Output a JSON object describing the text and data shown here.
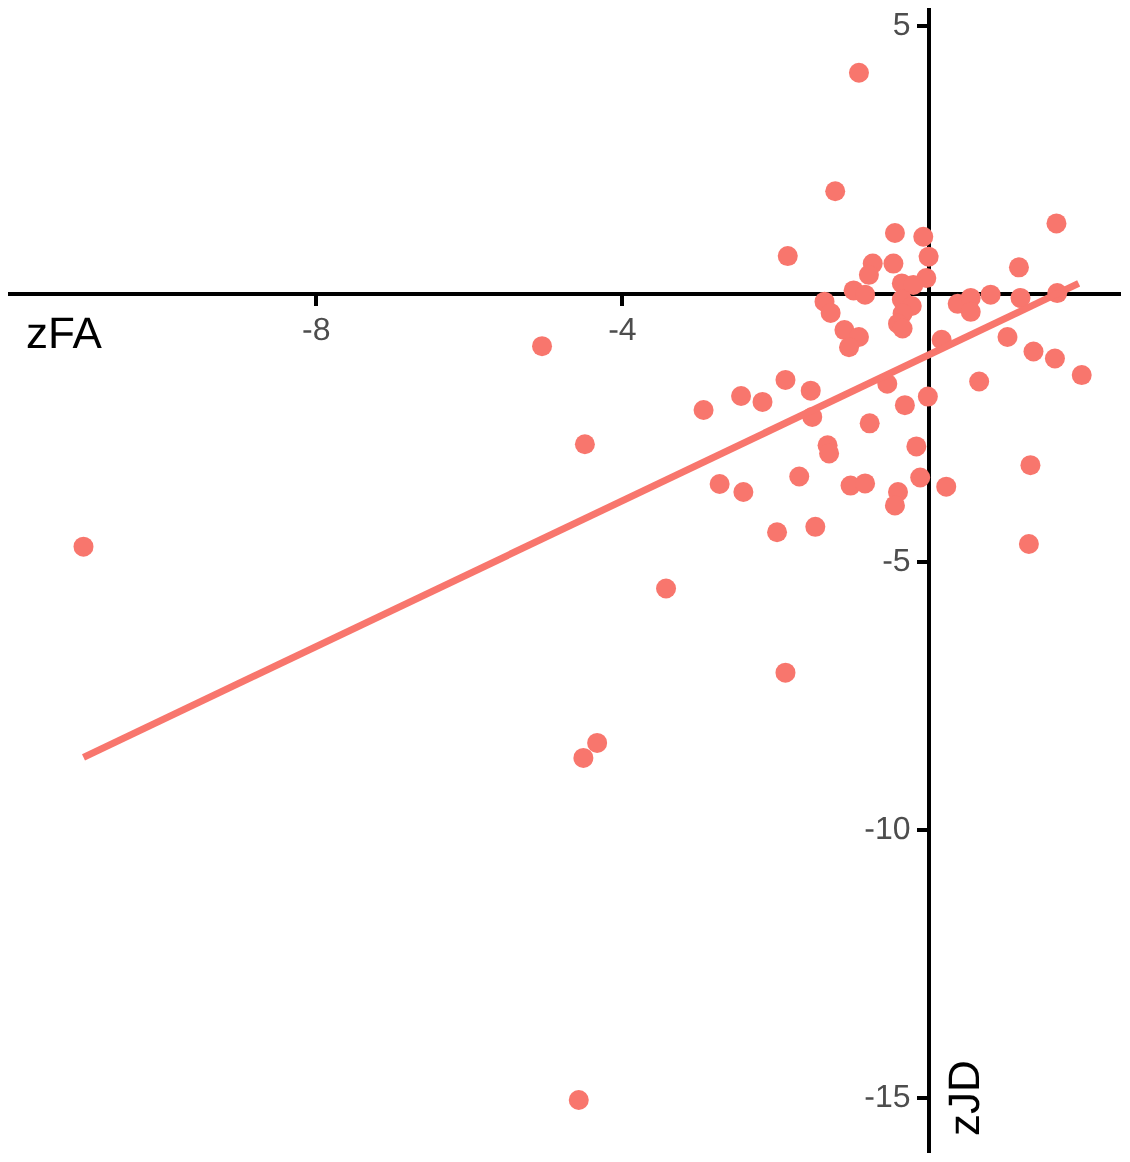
{
  "chart_data": {
    "type": "scatter",
    "xlabel": "zFA",
    "ylabel": "zJD",
    "xlim": [
      -12,
      2.5
    ],
    "ylim": [
      -16,
      5.3
    ],
    "xticks": [
      -8,
      -4
    ],
    "yticks": [
      5,
      -5,
      -10,
      -15
    ],
    "series": [
      {
        "type": "scatter",
        "color": "#f8766d",
        "x": [
          -11.04,
          -5.05,
          -4.49,
          -3.43,
          -1.87,
          -4.33,
          -4.51,
          -4.57,
          -0.91,
          -1.22,
          -1.84,
          -0.44,
          -0.07,
          1.67,
          0.0,
          -0.46,
          -0.73,
          -0.78,
          1.18,
          -0.03,
          -0.35,
          -0.2,
          -0.98,
          -0.83,
          -1.36,
          -1.28,
          -0.35,
          -0.22,
          -0.34,
          -0.4,
          -0.34,
          0.38,
          0.55,
          0.81,
          0.55,
          1.2,
          1.68,
          -1.1,
          -0.91,
          -1.04,
          0.17,
          1.03,
          1.37,
          1.65,
          2.0,
          -2.94,
          -2.45,
          -2.17,
          -1.87,
          -1.54,
          -1.52,
          -0.54,
          -0.31,
          -0.01,
          0.66,
          -0.77,
          -1.32,
          -1.3,
          -0.16,
          -2.73,
          -2.42,
          -1.69,
          -1.02,
          -0.83,
          -0.4,
          -0.44,
          -0.11,
          0.23,
          1.33,
          -1.98,
          -1.48,
          1.31
        ],
        "values": [
          -4.71,
          -0.97,
          -2.8,
          -5.49,
          -7.06,
          -8.37,
          -8.65,
          -15.03,
          4.13,
          1.92,
          0.71,
          1.14,
          1.07,
          1.32,
          0.7,
          0.57,
          0.57,
          0.36,
          0.5,
          0.3,
          0.2,
          0.17,
          0.07,
          -0.01,
          -0.14,
          -0.35,
          -0.1,
          -0.22,
          -0.36,
          -0.55,
          -0.64,
          -0.18,
          -0.07,
          -0.01,
          -0.33,
          -0.07,
          0.02,
          -0.67,
          -0.8,
          -0.99,
          -0.85,
          -0.8,
          -1.07,
          -1.2,
          -1.51,
          -2.16,
          -1.9,
          -2.01,
          -1.6,
          -1.8,
          -2.29,
          -1.67,
          -2.07,
          -1.91,
          -1.63,
          -2.41,
          -2.82,
          -2.97,
          -2.84,
          -3.54,
          -3.69,
          -3.4,
          -3.57,
          -3.53,
          -3.69,
          -3.94,
          -3.42,
          -3.59,
          -3.19,
          -4.44,
          -4.34,
          -4.66
        ]
      },
      {
        "type": "line",
        "color": "#f8766d",
        "x": [
          -11.04,
          1.96
        ],
        "values": [
          -8.64,
          0.2
        ]
      }
    ]
  }
}
